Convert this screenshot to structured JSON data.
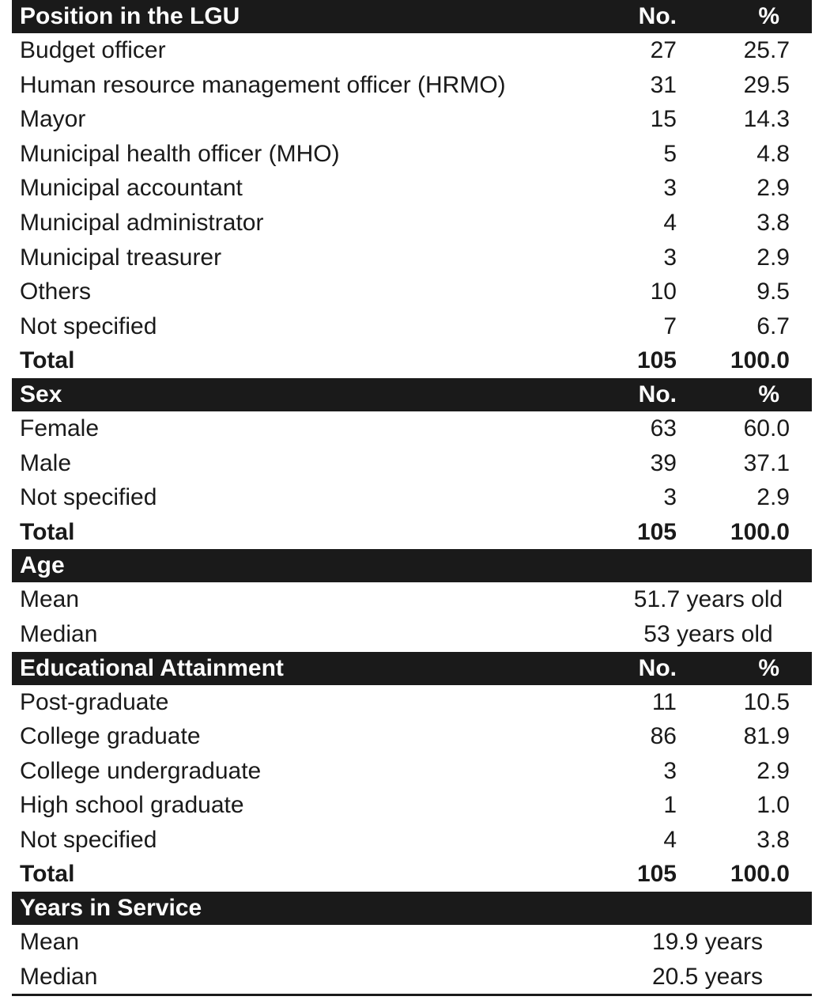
{
  "sections": [
    {
      "title": "Position in the LGU",
      "col_no": "No.",
      "col_pct": "%",
      "rows": [
        {
          "label": "Budget officer",
          "no": "27",
          "pct": "25.7"
        },
        {
          "label": "Human resource management officer (HRMO)",
          "no": "31",
          "pct": "29.5"
        },
        {
          "label": "Mayor",
          "no": "15",
          "pct": "14.3"
        },
        {
          "label": "Municipal health officer (MHO)",
          "no": "5",
          "pct": "4.8"
        },
        {
          "label": "Municipal accountant",
          "no": "3",
          "pct": "2.9"
        },
        {
          "label": "Municipal administrator",
          "no": "4",
          "pct": "3.8"
        },
        {
          "label": "Municipal treasurer",
          "no": "3",
          "pct": "2.9"
        },
        {
          "label": "Others",
          "no": "10",
          "pct": "9.5"
        },
        {
          "label": "Not specified",
          "no": "7",
          "pct": "6.7"
        }
      ],
      "total": {
        "label": "Total",
        "no": "105",
        "pct": "100.0"
      }
    },
    {
      "title": "Sex",
      "col_no": "No.",
      "col_pct": "%",
      "rows": [
        {
          "label": "Female",
          "no": "63",
          "pct": "60.0"
        },
        {
          "label": "Male",
          "no": "39",
          "pct": "37.1"
        },
        {
          "label": "Not specified",
          "no": "3",
          "pct": "2.9"
        }
      ],
      "total": {
        "label": "Total",
        "no": "105",
        "pct": "100.0"
      }
    },
    {
      "title": "Age",
      "stats": [
        {
          "label": "Mean",
          "value": "51.7 years old"
        },
        {
          "label": "Median",
          "value": "53 years old"
        }
      ]
    },
    {
      "title": "Educational Attainment",
      "col_no": "No.",
      "col_pct": "%",
      "rows": [
        {
          "label": "Post-graduate",
          "no": "11",
          "pct": "10.5"
        },
        {
          "label": "College graduate",
          "no": "86",
          "pct": "81.9"
        },
        {
          "label": "College undergraduate",
          "no": "3",
          "pct": "2.9"
        },
        {
          "label": "High school graduate",
          "no": "1",
          "pct": "1.0"
        },
        {
          "label": "Not specified",
          "no": "4",
          "pct": "3.8"
        }
      ],
      "total": {
        "label": "Total",
        "no": "105",
        "pct": "100.0"
      }
    },
    {
      "title": "Years in Service",
      "stats": [
        {
          "label": "Mean",
          "value": "19.9 years"
        },
        {
          "label": "Median",
          "value": "20.5 years"
        }
      ]
    }
  ]
}
